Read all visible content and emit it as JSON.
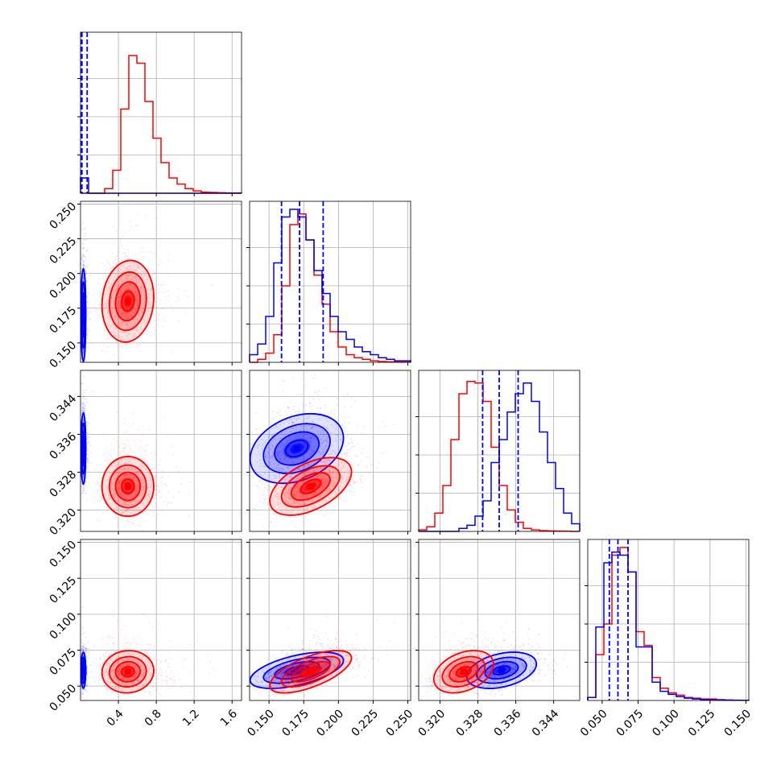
{
  "chart_data": {
    "type": "corner",
    "title": "",
    "series": [
      {
        "name": "",
        "color": "#0000ff"
      },
      {
        "name": "",
        "color": "#ff0000"
      }
    ],
    "grid": true,
    "parameters": [
      {
        "range": [
          0.0,
          1.7
        ],
        "ticks": [
          0.4,
          0.8,
          1.2,
          1.6
        ],
        "tick_labels": [
          "0.4",
          "0.8",
          "1.2",
          "1.6"
        ]
      },
      {
        "range": [
          0.136,
          0.252
        ],
        "ticks": [
          0.15,
          0.175,
          0.2,
          0.225,
          0.25
        ],
        "tick_labels": [
          "0.150",
          "0.175",
          "0.200",
          "0.225",
          "0.250"
        ]
      },
      {
        "range": [
          0.3155,
          0.3495
        ],
        "ticks": [
          0.32,
          0.328,
          0.336,
          0.344
        ],
        "tick_labels": [
          "0.320",
          "0.328",
          "0.336",
          "0.344"
        ]
      },
      {
        "range": [
          0.04,
          0.152
        ],
        "ticks": [
          0.05,
          0.075,
          0.1,
          0.125,
          0.15
        ],
        "tick_labels": [
          "0.050",
          "0.075",
          "0.100",
          "0.125",
          "0.150"
        ]
      }
    ],
    "histograms": [
      {
        "bins": [
          0.0,
          1.7
        ],
        "red_counts": [
          0,
          0,
          0,
          0.03,
          0.15,
          0.55,
          0.9,
          0.85,
          0.6,
          0.36,
          0.2,
          0.1,
          0.06,
          0.03,
          0.015,
          0.007,
          0.005,
          0.003,
          0.002,
          0.002
        ],
        "blue_counts": [
          0.1,
          0,
          0,
          0,
          0,
          0,
          0,
          0,
          0,
          0,
          0,
          0,
          0,
          0,
          0,
          0,
          0,
          0,
          0,
          0
        ],
        "blue_quantile_lines": [
          0.008,
          0.015,
          0.07
        ]
      },
      {
        "bins": [
          0.136,
          0.252
        ],
        "red_counts": [
          0,
          0.02,
          0.06,
          0.18,
          0.5,
          0.9,
          0.97,
          0.8,
          0.57,
          0.38,
          0.2,
          0.1,
          0.05,
          0.03,
          0.02,
          0.01,
          0.005,
          0.003,
          0.002,
          0.001
        ],
        "blue_counts": [
          0.05,
          0.12,
          0.3,
          0.65,
          0.95,
          1.0,
          0.95,
          0.8,
          0.6,
          0.45,
          0.3,
          0.2,
          0.15,
          0.1,
          0.07,
          0.05,
          0.03,
          0.02,
          0.01,
          0.01
        ],
        "blue_quantile_lines": [
          0.159,
          0.172,
          0.189
        ]
      },
      {
        "bins": [
          0.3155,
          0.3495
        ],
        "red_counts": [
          0.01,
          0.03,
          0.12,
          0.3,
          0.6,
          0.9,
          0.98,
          0.97,
          0.85,
          0.55,
          0.3,
          0.14,
          0.06,
          0.02,
          0.01,
          0.005,
          0.003,
          0.002,
          0.001,
          0.0
        ],
        "blue_counts": [
          0,
          0,
          0,
          0,
          0,
          0.02,
          0.04,
          0.1,
          0.2,
          0.45,
          0.6,
          0.78,
          0.9,
          0.97,
          0.85,
          0.65,
          0.45,
          0.28,
          0.12,
          0.05
        ],
        "blue_quantile_lines": [
          0.329,
          0.3325,
          0.3365
        ]
      },
      {
        "bins": [
          0.04,
          0.152
        ],
        "red_counts": [
          0.02,
          0.3,
          0.5,
          0.95,
          1.0,
          0.84,
          0.45,
          0.36,
          0.15,
          0.08,
          0.05,
          0.035,
          0.02,
          0.015,
          0.01,
          0.01,
          0.005,
          0.003,
          0.002,
          0.001
        ],
        "blue_counts": [
          0.02,
          0.48,
          0.9,
          0.97,
          0.95,
          0.84,
          0.35,
          0.35,
          0.12,
          0.06,
          0.04,
          0.025,
          0.015,
          0.01,
          0.005,
          0.004,
          0.003,
          0.002,
          0.001,
          0.001
        ],
        "blue_quantile_lines": [
          0.055,
          0.061,
          0.068
        ]
      }
    ],
    "pairs": [
      {
        "row": 1,
        "col": 0,
        "red": {
          "mean": [
            0.5,
            0.18
          ],
          "sd": [
            0.13,
            0.014
          ],
          "rho": 0.1
        },
        "blue": {
          "mean": [
            0.03,
            0.17
          ],
          "sd": [
            0.012,
            0.016
          ],
          "rho": 0.0
        }
      },
      {
        "row": 2,
        "col": 0,
        "red": {
          "mean": [
            0.5,
            0.325
          ],
          "sd": [
            0.13,
            0.003
          ],
          "rho": 0.0
        },
        "blue": {
          "mean": [
            0.03,
            0.333
          ],
          "sd": [
            0.012,
            0.0036
          ],
          "rho": 0.0
        }
      },
      {
        "row": 2,
        "col": 1,
        "red": {
          "mean": [
            0.18,
            0.325
          ],
          "sd": [
            0.014,
            0.0029
          ],
          "rho": 0.5
        },
        "blue": {
          "mean": [
            0.17,
            0.333
          ],
          "sd": [
            0.016,
            0.0035
          ],
          "rho": 0.3
        }
      },
      {
        "row": 3,
        "col": 0,
        "red": {
          "mean": [
            0.5,
            0.06
          ],
          "sd": [
            0.13,
            0.007
          ],
          "rho": 0.05
        },
        "blue": {
          "mean": [
            0.03,
            0.061
          ],
          "sd": [
            0.012,
            0.006
          ],
          "rho": 0.0
        }
      },
      {
        "row": 3,
        "col": 1,
        "red": {
          "mean": [
            0.18,
            0.06
          ],
          "sd": [
            0.014,
            0.007
          ],
          "rho": 0.65
        },
        "blue": {
          "mean": [
            0.17,
            0.061
          ],
          "sd": [
            0.016,
            0.006
          ],
          "rho": 0.55
        }
      },
      {
        "row": 3,
        "col": 2,
        "red": {
          "mean": [
            0.325,
            0.06
          ],
          "sd": [
            0.003,
            0.007
          ],
          "rho": 0.35
        },
        "blue": {
          "mean": [
            0.333,
            0.061
          ],
          "sd": [
            0.0035,
            0.006
          ],
          "rho": 0.35
        }
      }
    ]
  }
}
